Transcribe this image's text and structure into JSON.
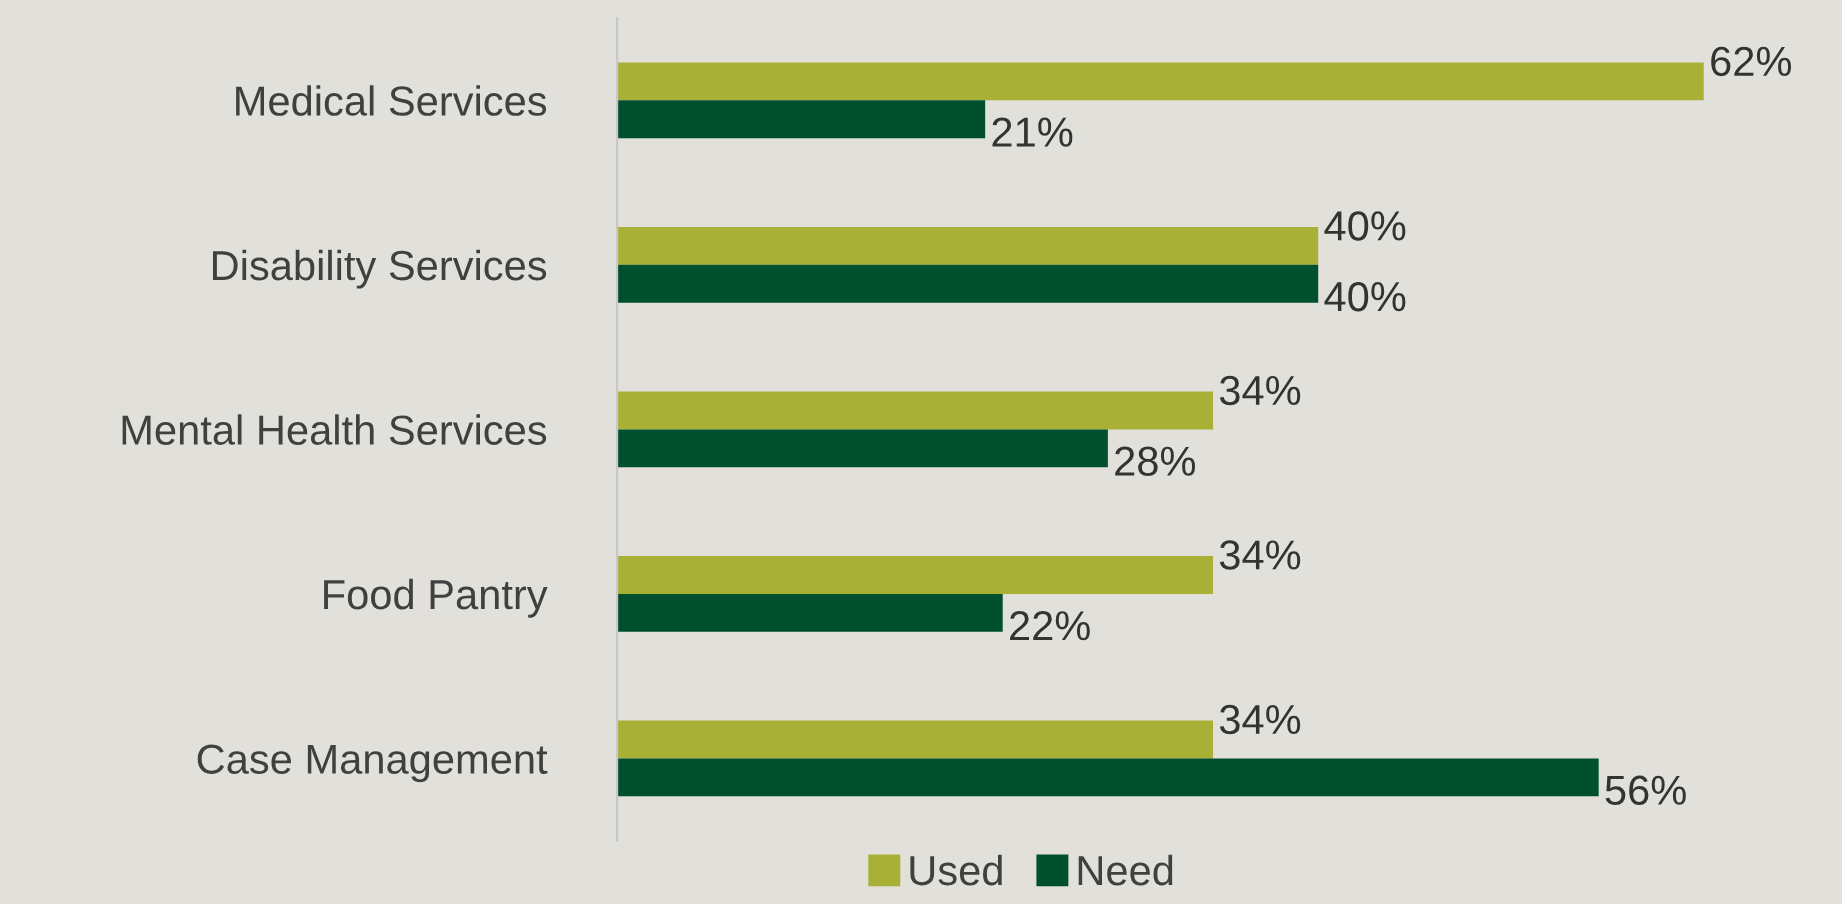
{
  "chart_data": {
    "type": "bar",
    "orientation": "horizontal",
    "categories": [
      "Medical Services",
      "Disability Services",
      "Mental Health Services",
      "Food Pantry",
      "Case Management"
    ],
    "series": [
      {
        "name": "Used",
        "color": "#a9b036",
        "values": [
          62,
          40,
          34,
          34,
          34
        ],
        "value_labels": [
          "62%",
          "40%",
          "34%",
          "34%",
          "34%"
        ]
      },
      {
        "name": "Need",
        "color": "#00502f",
        "values": [
          21,
          40,
          28,
          22,
          56
        ],
        "value_labels": [
          "21%",
          "40%",
          "28%",
          "22%",
          "56%"
        ]
      }
    ],
    "legend": "bottom"
  }
}
